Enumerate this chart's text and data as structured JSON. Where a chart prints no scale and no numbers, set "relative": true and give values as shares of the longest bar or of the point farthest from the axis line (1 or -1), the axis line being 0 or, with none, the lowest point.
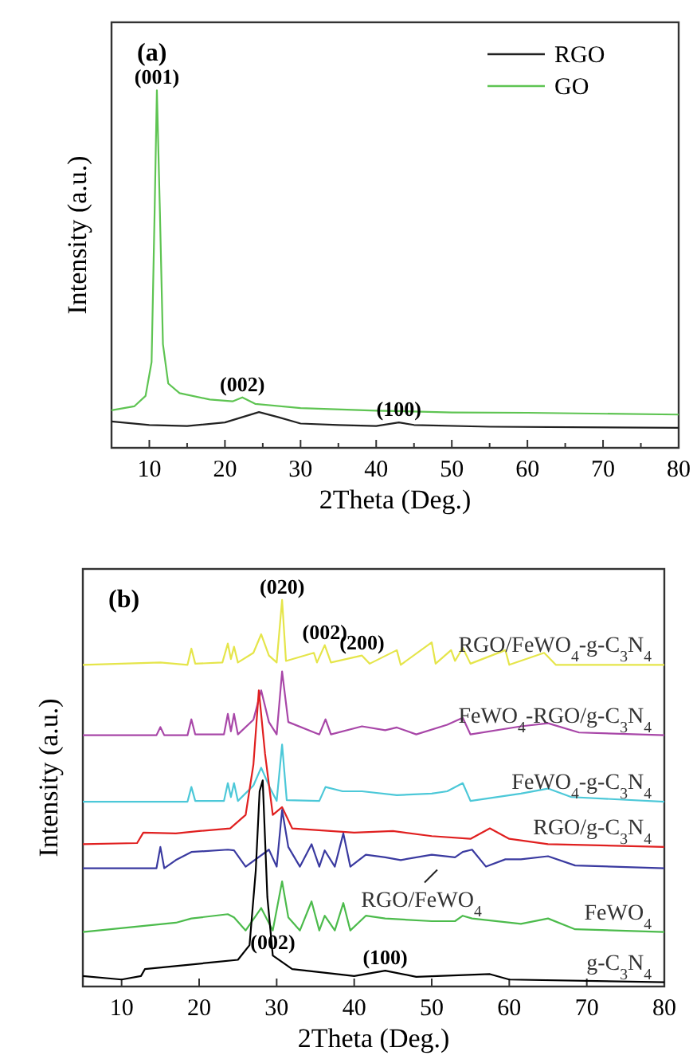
{
  "chart_data": [
    {
      "type": "line",
      "relative": true,
      "xlim": [
        5,
        80
      ],
      "xticks": [
        10,
        {
          "value": 15,
          "label": null
        },
        20,
        {
          "value": 25,
          "label": null
        },
        30,
        {
          "value": 35,
          "label": null
        },
        40,
        {
          "value": 45,
          "label": null
        },
        50,
        {
          "value": 55,
          "label": null
        },
        60,
        {
          "value": 65,
          "label": null
        },
        70,
        {
          "value": 75,
          "label": null
        },
        80
      ],
      "xlabel": "2Theta (Deg.)",
      "ylabel": "Intensity (a.u.)",
      "legend": "top right",
      "annotations": [
        "(a)",
        {
          "text": "(001)",
          "x": 11,
          "y": 1
        },
        {
          "text": "(002)",
          "x": 22.3,
          "y": 0.141
        },
        {
          "text": "(100)",
          "x": 43,
          "y": 0.071
        }
      ],
      "series": [
        {
          "name": "RGO",
          "color": "#222222",
          "x": [
            5,
            10,
            15,
            20,
            24.5,
            27,
            30,
            35,
            40,
            43,
            45,
            55,
            80
          ],
          "values": [
            0.074,
            0.064,
            0.061,
            0.071,
            0.1,
            0.086,
            0.068,
            0.064,
            0.061,
            0.071,
            0.064,
            0.059,
            0.056
          ]
        },
        {
          "name": "GO",
          "color": "#5ec452",
          "x": [
            5,
            8,
            9.5,
            10.3,
            10.7,
            11,
            11.4,
            11.8,
            12.5,
            14,
            18,
            21,
            22.3,
            24,
            30,
            40,
            50,
            60,
            80
          ],
          "values": [
            0.105,
            0.116,
            0.145,
            0.24,
            0.66,
            1,
            0.66,
            0.29,
            0.18,
            0.153,
            0.135,
            0.13,
            0.141,
            0.123,
            0.111,
            0.104,
            0.099,
            0.098,
            0.093
          ]
        }
      ]
    },
    {
      "type": "line",
      "relative": true,
      "xlim": [
        5,
        80
      ],
      "xticks": [
        10,
        20,
        30,
        40,
        50,
        60,
        70,
        80
      ],
      "xlabel": "2Theta (Deg.)",
      "ylabel": "Intensity (a.u.)",
      "annotations": [
        "(b)",
        {
          "text": "(020)",
          "x": 30.7,
          "y": 1
        },
        {
          "text": "(002)",
          "x": 36.2,
          "y": 0.883
        },
        {
          "text": "(200)",
          "x": 41,
          "y": 0.856
        },
        {
          "text": "(002)",
          "x": 29.5,
          "y": 0.08
        },
        {
          "text": "(100)",
          "x": 44,
          "y": 0.041
        }
      ],
      "series": [
        {
          "name": "RGO/FeWO$_{4}$-g-C$_{3}$N$_{4}$",
          "color": "#e5e54a",
          "x": [
            5,
            15,
            18.5,
            19,
            19.5,
            23,
            23.7,
            24.1,
            24.5,
            25,
            27,
            28,
            29,
            30,
            30.7,
            31.2,
            34.8,
            35.2,
            36.2,
            37,
            41,
            42,
            45.5,
            46,
            50,
            50.5,
            52.5,
            53,
            54,
            55,
            59.5,
            60,
            64.5,
            66,
            80
          ],
          "values": [
            0.832,
            0.838,
            0.832,
            0.874,
            0.835,
            0.838,
            0.887,
            0.847,
            0.879,
            0.838,
            0.863,
            0.911,
            0.856,
            0.838,
            1,
            0.842,
            0.863,
            0.838,
            0.883,
            0.838,
            0.856,
            0.835,
            0.87,
            0.832,
            0.89,
            0.835,
            0.87,
            0.842,
            0.876,
            0.835,
            0.87,
            0.832,
            0.863,
            0.832,
            0.832
          ]
        },
        {
          "name": "FeWO$_{4}$-RGO/g-C$_{3}$N$_{4}$",
          "color": "#a847a8",
          "x": [
            5,
            14.5,
            15,
            15.5,
            18.5,
            19,
            19.5,
            23.2,
            23.7,
            24.1,
            24.5,
            25,
            27,
            28,
            29,
            30,
            30.7,
            31.5,
            35.5,
            36.3,
            37,
            41,
            44,
            45.5,
            48,
            52,
            54,
            55,
            61.5,
            65,
            69,
            80
          ],
          "values": [
            0.65,
            0.65,
            0.671,
            0.65,
            0.65,
            0.691,
            0.652,
            0.652,
            0.705,
            0.66,
            0.705,
            0.652,
            0.69,
            0.766,
            0.684,
            0.652,
            0.815,
            0.684,
            0.652,
            0.691,
            0.652,
            0.673,
            0.663,
            0.67,
            0.652,
            0.677,
            0.695,
            0.652,
            0.673,
            0.681,
            0.657,
            0.65
          ]
        },
        {
          "name": "FeWO$_{4}$-g-C$_{3}$N$_{4}$",
          "color": "#4cc8d8",
          "x": [
            5,
            18.5,
            19,
            19.5,
            23.2,
            23.7,
            24.1,
            24.5,
            25,
            27,
            28,
            29.2,
            30,
            30.7,
            31.3,
            35.5,
            36.3,
            38.5,
            41,
            45.5,
            50,
            52,
            54,
            55,
            61.5,
            65,
            68,
            80
          ],
          "values": [
            0.478,
            0.478,
            0.516,
            0.48,
            0.48,
            0.526,
            0.49,
            0.526,
            0.48,
            0.52,
            0.566,
            0.511,
            0.48,
            0.626,
            0.482,
            0.48,
            0.516,
            0.505,
            0.505,
            0.495,
            0.499,
            0.505,
            0.526,
            0.48,
            0.499,
            0.512,
            0.49,
            0.478
          ]
        },
        {
          "name": "RGO/g-C$_{3}$N$_{4}$",
          "color": "#e02020",
          "x": [
            5,
            12,
            12.8,
            17,
            20,
            24,
            26,
            27,
            27.7,
            28.5,
            29.5,
            30.7,
            32,
            40,
            45,
            50,
            55,
            57.5,
            60,
            65,
            80
          ],
          "values": [
            0.368,
            0.371,
            0.398,
            0.396,
            0.402,
            0.409,
            0.444,
            0.574,
            0.766,
            0.602,
            0.444,
            0.464,
            0.409,
            0.398,
            0.402,
            0.389,
            0.382,
            0.409,
            0.382,
            0.368,
            0.361
          ]
        },
        {
          "name": "RGO/FeWO$_{4}$",
          "color": "#3a3aa0",
          "x": [
            5,
            14.5,
            15,
            15.5,
            17,
            19,
            23.7,
            24.5,
            26,
            29,
            30,
            30.7,
            31.5,
            33,
            34.5,
            35.5,
            36.2,
            37.5,
            38.6,
            39.5,
            41.5,
            44,
            46,
            50,
            53,
            54,
            55.2,
            57,
            59.5,
            61.5,
            65,
            68.5,
            80
          ],
          "values": [
            0.306,
            0.306,
            0.361,
            0.306,
            0.327,
            0.348,
            0.354,
            0.352,
            0.31,
            0.354,
            0.31,
            0.457,
            0.361,
            0.31,
            0.368,
            0.31,
            0.352,
            0.31,
            0.396,
            0.31,
            0.341,
            0.334,
            0.327,
            0.341,
            0.334,
            0.348,
            0.354,
            0.31,
            0.329,
            0.329,
            0.337,
            0.313,
            0.306
          ]
        },
        {
          "name": "FeWO$_{4}$",
          "color": "#4cbb4c",
          "x": [
            5,
            17,
            19,
            23.7,
            24.5,
            26,
            28,
            29.5,
            30.7,
            31.5,
            33,
            34.5,
            35.5,
            36.2,
            37.5,
            38.6,
            39.5,
            41.5,
            44,
            50,
            53,
            54,
            55.2,
            61.5,
            65,
            68.5,
            80
          ],
          "values": [
            0.141,
            0.165,
            0.176,
            0.187,
            0.179,
            0.145,
            0.203,
            0.145,
            0.272,
            0.179,
            0.145,
            0.22,
            0.145,
            0.183,
            0.145,
            0.216,
            0.145,
            0.183,
            0.176,
            0.169,
            0.169,
            0.183,
            0.176,
            0.162,
            0.176,
            0.148,
            0.141
          ]
        },
        {
          "name": "g-C$_{3}$N$_{4}$",
          "color": "#000000",
          "x": [
            5,
            10,
            12.5,
            13,
            18,
            22,
            25,
            26.5,
            27.3,
            27.8,
            28.2,
            28.8,
            29.5,
            32,
            40,
            44,
            48,
            57.5,
            60,
            80
          ],
          "values": [
            0.027,
            0.018,
            0.027,
            0.045,
            0.055,
            0.063,
            0.069,
            0.107,
            0.299,
            0.505,
            0.533,
            0.231,
            0.08,
            0.045,
            0.027,
            0.041,
            0.025,
            0.032,
            0.018,
            0.011
          ]
        }
      ]
    }
  ]
}
